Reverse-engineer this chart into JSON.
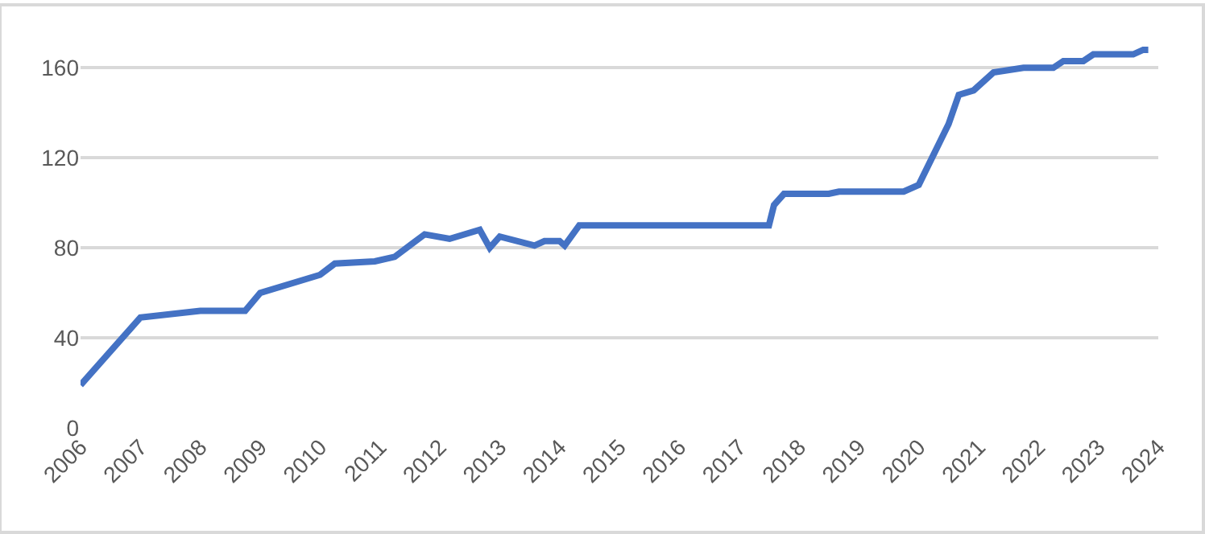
{
  "chart_data": {
    "type": "line",
    "x": [
      "2006-01",
      "2007-01",
      "2008-01",
      "2008-10",
      "2009-01",
      "2010-01",
      "2010-04",
      "2010-12",
      "2011-04",
      "2011-10",
      "2012-03",
      "2012-09",
      "2012-11",
      "2013-01",
      "2013-08",
      "2013-10",
      "2014-01",
      "2014-02",
      "2014-05",
      "2017-07",
      "2017-08",
      "2017-10",
      "2018-07",
      "2018-09",
      "2019-10",
      "2020-01",
      "2020-07",
      "2020-09",
      "2020-12",
      "2021-04",
      "2021-10",
      "2022-04",
      "2022-06",
      "2022-10",
      "2022-12",
      "2023-08",
      "2023-10",
      "2023-11"
    ],
    "series": [
      {
        "color": "#4472c4",
        "values": [
          19,
          49,
          52,
          52,
          60,
          68,
          73,
          74,
          76,
          86,
          84,
          88,
          80,
          85,
          81,
          83,
          83,
          81,
          90,
          90,
          99,
          104,
          104,
          105,
          105,
          108,
          135,
          148,
          150,
          158,
          160,
          160,
          163,
          163,
          166,
          166,
          168,
          168
        ]
      }
    ],
    "xlim": [
      "2006-01-01",
      "2024-01-01"
    ],
    "xticks": [
      {
        "value": "2006-01-01",
        "label": "2006"
      },
      {
        "value": "2007-01-01",
        "label": "2007"
      },
      {
        "value": "2008-01-01",
        "label": "2008"
      },
      {
        "value": "2009-01-01",
        "label": "2009"
      },
      {
        "value": "2010-01-01",
        "label": "2010"
      },
      {
        "value": "2011-01-01",
        "label": "2011"
      },
      {
        "value": "2012-01-01",
        "label": "2012"
      },
      {
        "value": "2013-01-01",
        "label": "2013"
      },
      {
        "value": "2014-01-01",
        "label": "2014"
      },
      {
        "value": "2015-01-01",
        "label": "2015"
      },
      {
        "value": "2016-01-01",
        "label": "2016"
      },
      {
        "value": "2017-01-01",
        "label": "2017"
      },
      {
        "value": "2018-01-01",
        "label": "2018"
      },
      {
        "value": "2019-01-01",
        "label": "2019"
      },
      {
        "value": "2020-01-01",
        "label": "2020"
      },
      {
        "value": "2021-01-01",
        "label": "2021"
      },
      {
        "value": "2022-01-01",
        "label": "2022"
      },
      {
        "value": "2023-01-01",
        "label": "2023"
      },
      {
        "value": "2024-01-01",
        "label": "2024"
      }
    ],
    "ylim": [
      0,
      188
    ],
    "yticks": [
      0,
      40,
      80,
      120,
      160
    ],
    "grid": "y",
    "marker": "none",
    "line_style": "solid"
  }
}
